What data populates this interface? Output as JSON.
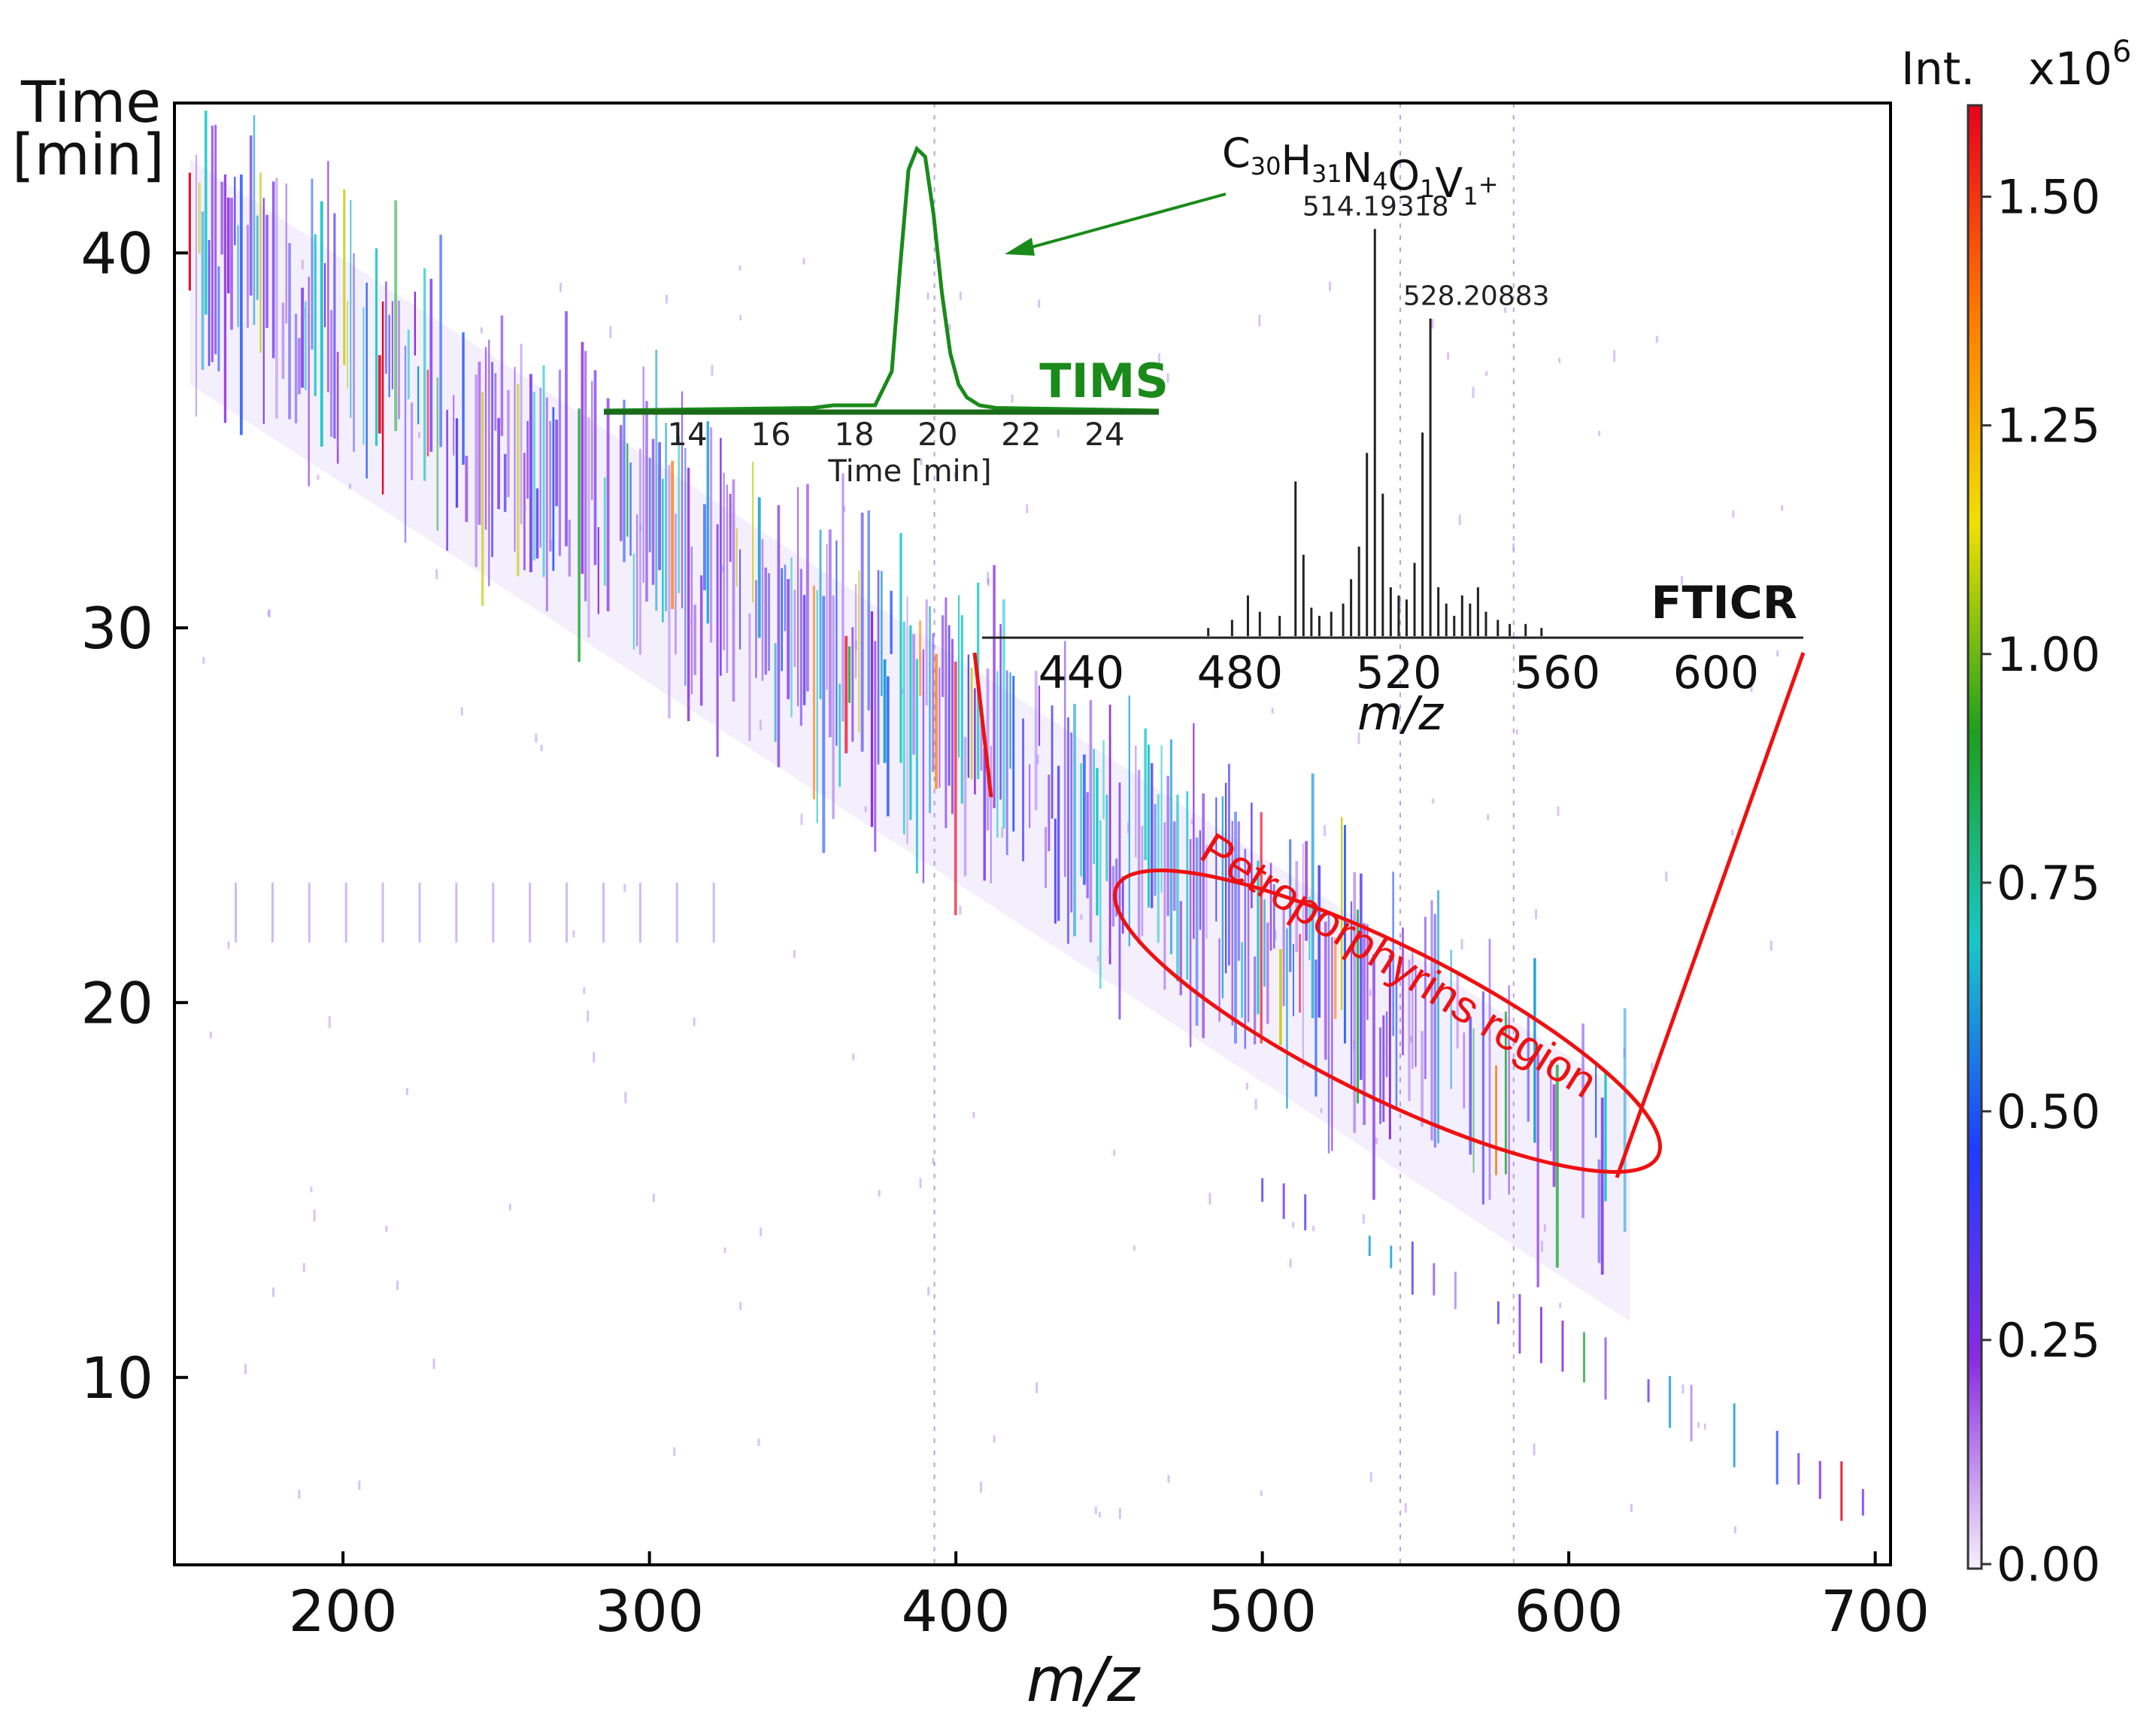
{
  "chart_data": [
    {
      "type": "heatmap",
      "title": "",
      "xlabel": "m/z",
      "ylabel_line1": "Time",
      "ylabel_line2": "[min]",
      "xlim": [
        145,
        705
      ],
      "ylim": [
        5,
        44
      ],
      "x_ticks": [
        200,
        300,
        400,
        500,
        600,
        700
      ],
      "y_ticks": [
        10,
        20,
        30,
        40
      ],
      "grid": false,
      "colorbar": {
        "label": "Int.",
        "multiplier": "x10",
        "exponent": "6",
        "ticks": [
          "0.00",
          "0.25",
          "0.50",
          "0.75",
          "1.00",
          "1.25",
          "1.50"
        ],
        "tick_values": [
          0,
          0.25,
          0.5,
          0.75,
          1.0,
          1.25,
          1.5
        ],
        "range": [
          0,
          1.6
        ],
        "colors": [
          "#f6f0fa",
          "#8a2be2",
          "#1e3cff",
          "#18c8c8",
          "#1ca01c",
          "#f0e000",
          "#ff7a00",
          "#e8001c"
        ]
      },
      "main_trend_band": {
        "mz_range": [
          150,
          620
        ],
        "time_at_start_min": 40,
        "time_at_end_min": 15
      },
      "late_feature_series": {
        "mz_range": [
          500,
          700
        ],
        "time_at_start_min": 15,
        "time_at_end_min": 6.5
      },
      "reference_lines_mz": [
        393,
        545,
        582
      ],
      "annotation_region": {
        "label": "Petroporphyrins region",
        "color": "#ee1111",
        "center_mz": 515,
        "center_time_min": 19.5
      }
    },
    {
      "type": "line",
      "label": "TIMS",
      "color": "#1a8a1a",
      "xlabel": "Time [min]",
      "x_ticks": [
        14,
        16,
        18,
        20,
        22,
        24
      ],
      "xlim": [
        12,
        25.3
      ],
      "x": [
        12,
        17,
        17.5,
        18.5,
        18.9,
        19.1,
        19.3,
        19.5,
        19.7,
        19.9,
        20.1,
        20.3,
        20.5,
        20.7,
        21.0,
        21.4,
        25.3
      ],
      "y": [
        0,
        0.01,
        0.02,
        0.02,
        0.15,
        0.55,
        0.92,
        1.0,
        0.97,
        0.75,
        0.45,
        0.22,
        0.1,
        0.05,
        0.02,
        0.01,
        0
      ],
      "ylim": [
        0,
        1.08
      ]
    },
    {
      "type": "bar",
      "label": "FTICR",
      "xlabel": "m/z",
      "x_ticks": [
        440,
        480,
        520,
        560,
        600
      ],
      "xlim": [
        415,
        622
      ],
      "formula": "C30H31N4O1V1+",
      "formula_parts": [
        [
          "C",
          "30"
        ],
        [
          "H",
          "31"
        ],
        [
          "N",
          "4"
        ],
        [
          "O",
          "1"
        ],
        [
          "V",
          "1"
        ]
      ],
      "formula_charge": "+",
      "peak_labels": [
        {
          "mz": 514.19318,
          "text": "514.19318"
        },
        {
          "mz": 528.20883,
          "text": "528.20883"
        }
      ],
      "x": [
        472,
        478,
        482,
        485,
        490,
        494,
        496,
        498,
        500,
        503,
        506,
        508,
        510,
        512,
        514,
        516,
        518,
        520,
        522,
        524,
        526,
        528,
        530,
        532,
        534,
        536,
        538,
        540,
        542,
        545,
        548,
        552,
        556
      ],
      "values": [
        0.02,
        0.04,
        0.1,
        0.06,
        0.05,
        0.38,
        0.2,
        0.07,
        0.05,
        0.06,
        0.08,
        0.14,
        0.22,
        0.45,
        1.0,
        0.35,
        0.12,
        0.1,
        0.09,
        0.18,
        0.5,
        0.78,
        0.12,
        0.08,
        0.05,
        0.1,
        0.08,
        0.12,
        0.06,
        0.04,
        0.03,
        0.03,
        0.02
      ],
      "ylim": [
        0,
        1.06
      ]
    }
  ]
}
